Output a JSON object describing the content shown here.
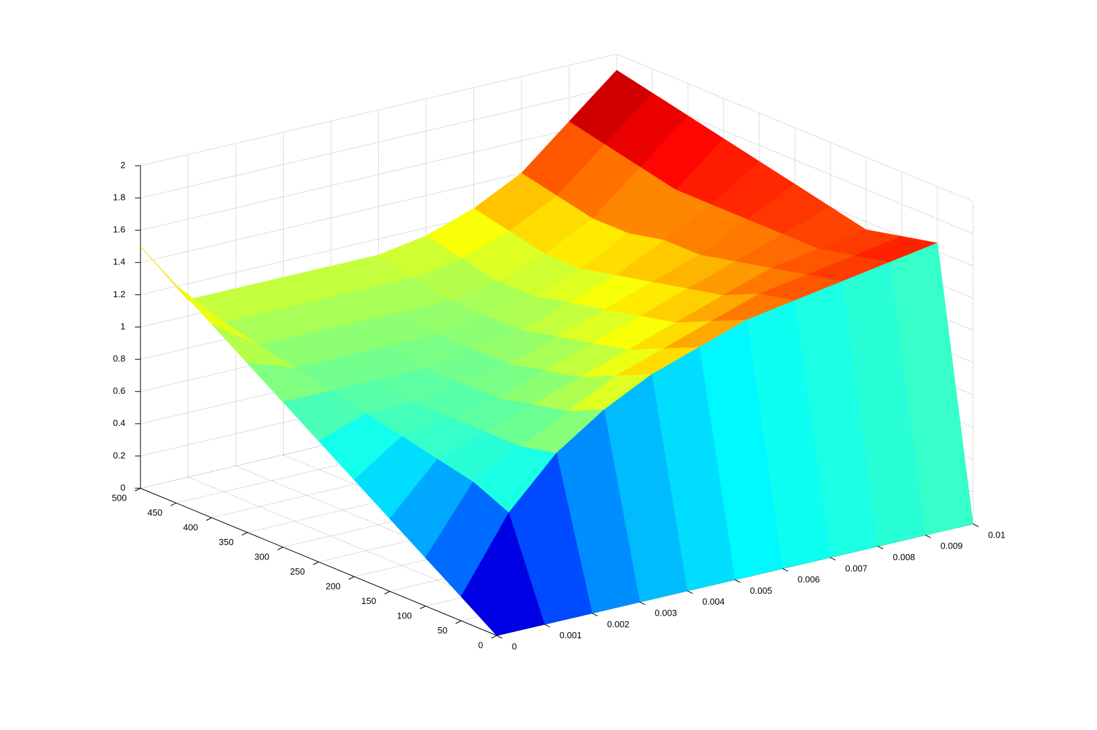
{
  "chart_data": {
    "type": "surface",
    "x": [
      0,
      0.001,
      0.002,
      0.003,
      0.004,
      0.005,
      0.006,
      0.007,
      0.008,
      0.009,
      0.01
    ],
    "y": [
      0,
      50,
      100,
      150,
      200,
      250,
      300,
      350,
      400,
      450,
      500
    ],
    "z": [
      [
        0,
        0,
        0,
        0,
        0,
        0,
        0,
        0,
        0,
        0,
        0
      ],
      [
        0.15,
        0.6,
        0.9,
        1.1,
        1.25,
        1.35,
        1.45,
        1.5,
        1.55,
        1.6,
        1.65
      ],
      [
        0.3,
        0.7,
        0.85,
        1.0,
        1.15,
        1.25,
        1.35,
        1.45,
        1.5,
        1.55,
        1.6
      ],
      [
        0.45,
        0.75,
        0.85,
        0.95,
        1.05,
        1.15,
        1.25,
        1.35,
        1.45,
        1.5,
        1.55
      ],
      [
        0.6,
        0.8,
        0.85,
        0.9,
        1.0,
        1.1,
        1.2,
        1.3,
        1.4,
        1.5,
        1.6
      ],
      [
        0.75,
        0.85,
        0.85,
        0.9,
        0.95,
        1.05,
        1.15,
        1.25,
        1.35,
        1.5,
        1.65
      ],
      [
        0.9,
        0.9,
        0.9,
        0.9,
        0.95,
        1.0,
        1.1,
        1.2,
        1.35,
        1.5,
        1.7
      ],
      [
        1.05,
        0.95,
        0.95,
        0.95,
        0.95,
        1.0,
        1.05,
        1.15,
        1.3,
        1.5,
        1.75
      ],
      [
        1.2,
        1.0,
        1.0,
        1.0,
        1.0,
        1.0,
        1.05,
        1.15,
        1.3,
        1.55,
        1.8
      ],
      [
        1.35,
        1.05,
        1.05,
        1.05,
        1.05,
        1.05,
        1.1,
        1.2,
        1.35,
        1.6,
        1.85
      ],
      [
        1.5,
        1.1,
        1.1,
        1.1,
        1.1,
        1.1,
        1.15,
        1.25,
        1.4,
        1.65,
        1.9
      ]
    ],
    "xlim": [
      0,
      0.01
    ],
    "ylim": [
      0,
      500
    ],
    "zlim": [
      0,
      2
    ],
    "xticks": [
      0,
      0.001,
      0.002,
      0.003,
      0.004,
      0.005,
      0.006,
      0.007,
      0.008,
      0.009,
      0.01
    ],
    "yticks": [
      0,
      50,
      100,
      150,
      200,
      250,
      300,
      350,
      400,
      450,
      500
    ],
    "zticks": [
      0,
      0.2,
      0.4,
      0.6,
      0.8,
      1,
      1.2,
      1.4,
      1.6,
      1.8,
      2
    ],
    "grid": true,
    "colormap": "jet"
  }
}
